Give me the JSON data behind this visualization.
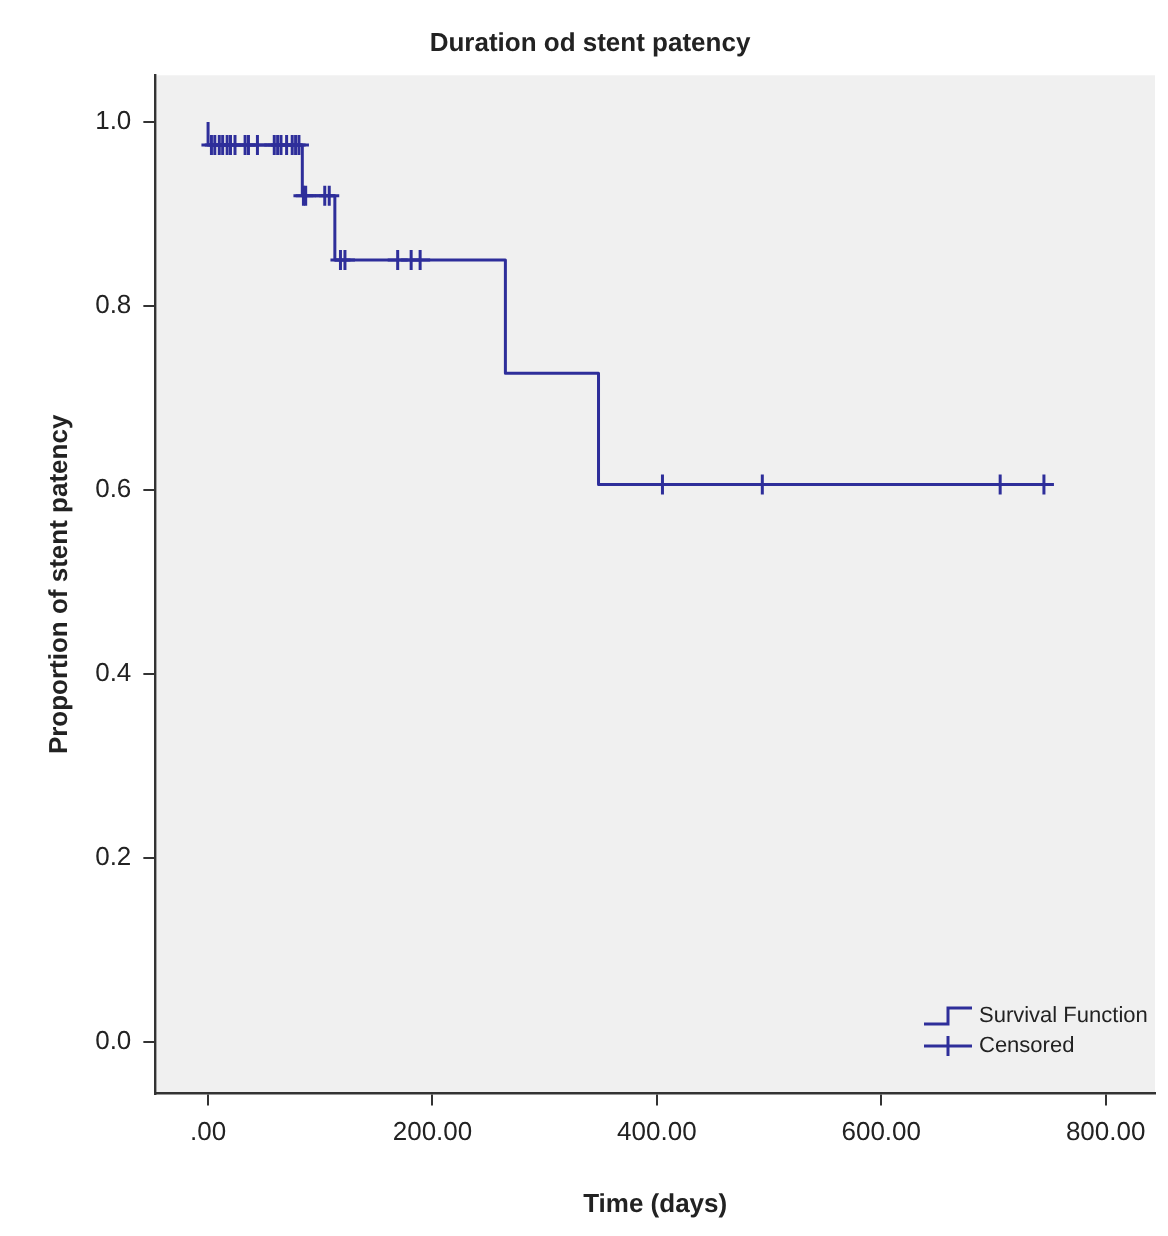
{
  "chart_data": {
    "type": "step",
    "title": "Duration od stent patency",
    "xlabel": "Time (days)",
    "ylabel": "Proportion of stent patency",
    "series": [
      {
        "name": "Survival Function",
        "color": "#2e2e9a",
        "x": [
          0,
          0,
          84,
          113,
          265,
          348,
          745
        ],
        "values": [
          1.0,
          0.975,
          0.92,
          0.85,
          0.727,
          0.606,
          0.606
        ]
      },
      {
        "name": "Censored",
        "type": "scatter",
        "marker": "cross",
        "color": "#2e2e9a",
        "x": [
          3,
          6,
          10,
          13,
          17,
          20,
          24,
          33,
          36,
          44,
          59,
          62,
          65,
          70,
          75,
          78,
          81,
          85,
          87,
          104,
          108,
          118,
          122,
          169,
          181,
          189,
          405,
          494,
          706,
          745
        ],
        "values": [
          0.975,
          0.975,
          0.975,
          0.975,
          0.975,
          0.975,
          0.975,
          0.975,
          0.975,
          0.975,
          0.975,
          0.975,
          0.975,
          0.975,
          0.975,
          0.975,
          0.975,
          0.92,
          0.92,
          0.92,
          0.92,
          0.85,
          0.85,
          0.85,
          0.85,
          0.85,
          0.606,
          0.606,
          0.606,
          0.606
        ]
      }
    ],
    "xlim": [
      -47,
      844
    ],
    "xticks": [
      {
        "value": 0,
        "label": ".00"
      },
      {
        "value": 200,
        "label": "200.00"
      },
      {
        "value": 400,
        "label": "400.00"
      },
      {
        "value": 600,
        "label": "600.00"
      },
      {
        "value": 800,
        "label": "800.00"
      }
    ],
    "ylim": [
      -0.056,
      1.051
    ],
    "yticks": [
      {
        "value": 0,
        "label": "0.0"
      },
      0.2,
      0.4,
      0.6,
      0.8,
      {
        "value": 1,
        "label": "1.0"
      }
    ],
    "grid": false,
    "legend": "bottom right",
    "marker": "none",
    "line_style": "solid"
  }
}
